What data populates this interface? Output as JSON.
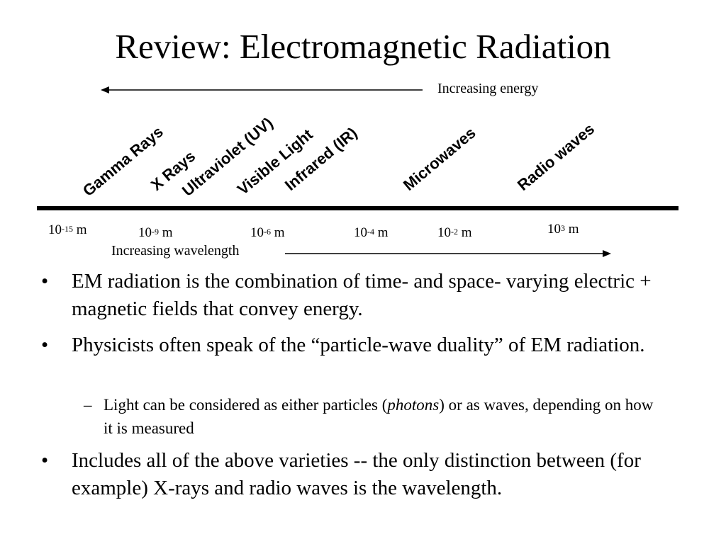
{
  "title": "Review: Electromagnetic Radiation",
  "energy_label": "Increasing energy",
  "wavelength_label": "Increasing wavelength",
  "bands": [
    "Gamma Rays",
    "X Rays",
    "Ultraviolet (UV)",
    "Visible Light",
    "Infrared (IR)",
    "Microwaves",
    "Radio waves"
  ],
  "ticks": [
    {
      "base": "10",
      "exp": "-15",
      "unit": " m"
    },
    {
      "base": "10",
      "exp": "-9",
      "unit": " m"
    },
    {
      "base": "10",
      "exp": "-6",
      "unit": " m"
    },
    {
      "base": "10",
      "exp": "-4",
      "unit": " m"
    },
    {
      "base": "10",
      "exp": "-2",
      "unit": " m"
    },
    {
      "base": "10",
      "exp": "3",
      "unit": " m"
    }
  ],
  "bullets": [
    {
      "mark": "•",
      "text": "EM radiation is the combination of time- and space- varying electric + magnetic fields that convey energy."
    },
    {
      "mark": "•",
      "text": "Physicists often speak of the “particle-wave duality” of EM radiation."
    },
    {
      "mark": "–",
      "pre": "Light can be considered as either particles (",
      "em": "photons",
      "post": ") or as waves, depending on how it is measured"
    },
    {
      "mark": "•",
      "text": "Includes all of the above varieties -- the only distinction between (for example) X-rays and radio waves is the wavelength."
    }
  ]
}
